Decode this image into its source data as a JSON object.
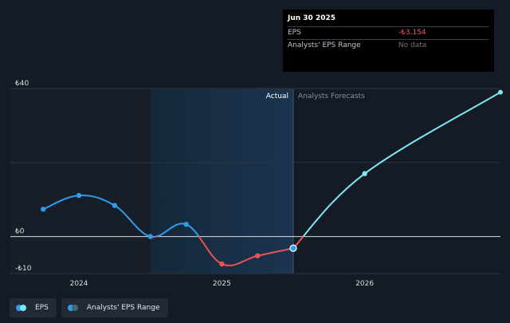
{
  "chart_data": {
    "type": "line",
    "currency_symbol": "₺",
    "y_ticks": [
      {
        "value": 40,
        "label": "₺40"
      },
      {
        "value": 0,
        "label": "₺0"
      },
      {
        "value": -10,
        "label": "-₺10"
      }
    ],
    "x_ticks": [
      {
        "value": 2024.0,
        "label": "2024"
      },
      {
        "value": 2025.0,
        "label": "2025"
      },
      {
        "value": 2026.0,
        "label": "2026"
      }
    ],
    "ylim": [
      -10,
      40
    ],
    "xlim": [
      2023.52,
      2026.95
    ],
    "gridlines": [
      40,
      20,
      0
    ],
    "shaded_start": 2024.5,
    "divider_x": 2025.5,
    "region_labels": {
      "actual": "Actual",
      "forecast": "Analysts Forecasts"
    },
    "series": [
      {
        "name": "EPS",
        "color_positive": "#2f9bef",
        "color_negative": "#e85454",
        "points": [
          {
            "x": 2023.75,
            "y": 7.4
          },
          {
            "x": 2024.0,
            "y": 11.1
          },
          {
            "x": 2024.25,
            "y": 8.4
          },
          {
            "x": 2024.5,
            "y": 0.0
          },
          {
            "x": 2024.75,
            "y": 3.3
          },
          {
            "x": 2025.0,
            "y": -7.4
          },
          {
            "x": 2025.25,
            "y": -5.2
          },
          {
            "x": 2025.5,
            "y": -3.154
          }
        ]
      },
      {
        "name": "EPS forecast",
        "color_positive": "#7ee8f2",
        "color_negative": "#e85454",
        "points": [
          {
            "x": 2025.5,
            "y": -3.154
          },
          {
            "x": 2026.0,
            "y": 17.0
          },
          {
            "x": 2026.95,
            "y": 39.0
          }
        ]
      }
    ],
    "highlight_point": {
      "x": 2025.5,
      "y": -3.154
    }
  },
  "tooltip": {
    "title": "Jun 30 2025",
    "rows": [
      {
        "label": "EPS",
        "value": "-₺3.154"
      },
      {
        "label": "Analysts' EPS Range",
        "value": "No data"
      }
    ]
  },
  "legend": [
    {
      "label": "EPS",
      "colors": [
        "#2f9bef",
        "#7ee8f2"
      ]
    },
    {
      "label": "Analysts' EPS Range",
      "colors": [
        "#2f9bef",
        "#3f6a73"
      ]
    }
  ]
}
